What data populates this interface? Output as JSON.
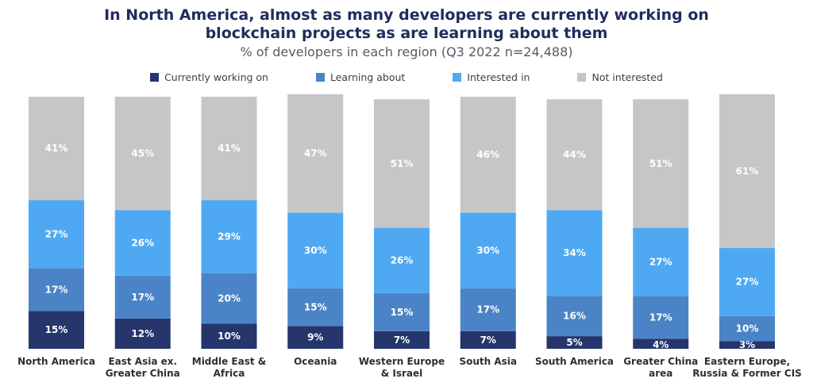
{
  "chart_data": {
    "type": "bar",
    "stacked": true,
    "title": "In North America, almost as many developers are currently working on blockchain projects as are learning about them",
    "subtitle": "% of developers in each region (Q3 2022 n=24,488)",
    "legend_position": "top",
    "ylim": [
      0,
      100
    ],
    "categories": [
      [
        "North America"
      ],
      [
        "East Asia ex.",
        "Greater China"
      ],
      [
        "Middle East &",
        "Africa"
      ],
      [
        "Oceania"
      ],
      [
        "Western Europe",
        "& Israel"
      ],
      [
        "South Asia"
      ],
      [
        "South America"
      ],
      [
        "Greater China",
        "area"
      ],
      [
        "Eastern Europe,",
        "Russia & Former CIS"
      ]
    ],
    "series": [
      {
        "name": "Currently working on",
        "color": "#26356b",
        "values": [
          15,
          12,
          10,
          9,
          7,
          7,
          5,
          4,
          3
        ]
      },
      {
        "name": "Learning about",
        "color": "#4a84c6",
        "values": [
          17,
          17,
          20,
          15,
          15,
          17,
          16,
          17,
          10
        ]
      },
      {
        "name": "Interested in",
        "color": "#4fa9f2",
        "values": [
          27,
          26,
          29,
          30,
          26,
          30,
          34,
          27,
          27
        ]
      },
      {
        "name": "Not interested",
        "color": "#c6c6c9",
        "values": [
          41,
          45,
          41,
          47,
          51,
          46,
          44,
          51,
          61
        ]
      }
    ]
  }
}
